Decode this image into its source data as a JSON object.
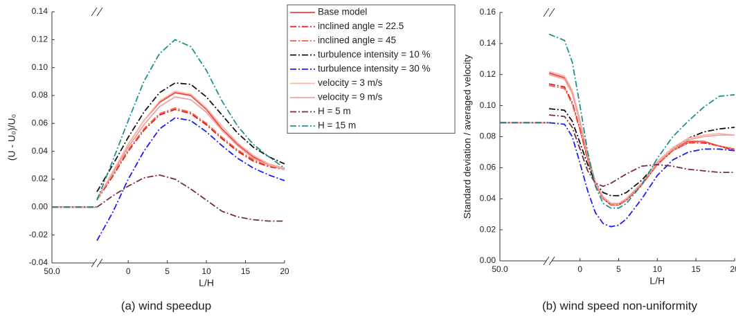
{
  "chart_data": [
    {
      "type": "line",
      "caption": "(a) wind speedup",
      "xlabel": "L/H",
      "ylabel": "(U - U₀)/U₀",
      "xlim": [
        -50,
        20
      ],
      "xbreak": -4,
      "xticks": [
        {
          "value": -50,
          "label": "50.0"
        },
        0,
        5,
        10,
        15,
        20
      ],
      "ylim": [
        -0.04,
        0.14
      ],
      "yticks": [
        {
          "value": -0.04,
          "label": "-0.04"
        },
        {
          "value": -0.02,
          "label": "-0.02"
        },
        {
          "value": 0,
          "label": "0.00"
        },
        {
          "value": 0.02,
          "label": "0.02"
        },
        {
          "value": 0.04,
          "label": "0.04"
        },
        {
          "value": 0.06,
          "label": "0.06"
        },
        {
          "value": 0.08,
          "label": "0.08"
        },
        {
          "value": 0.1,
          "label": "0.10"
        },
        {
          "value": 0.12,
          "label": "0.12"
        },
        {
          "value": 0.14,
          "label": "0.14"
        }
      ],
      "legend": "top-right",
      "x": [
        -50,
        -4.5,
        -4.4,
        -4,
        -2,
        0,
        2,
        4,
        6,
        8,
        10,
        12,
        14,
        16,
        18,
        20
      ],
      "series": [
        {
          "name": "Base model",
          "color": "#f04040",
          "dash": "solid",
          "values": [
            0,
            0,
            null,
            0.005,
            0.025,
            0.045,
            0.062,
            0.075,
            0.082,
            0.08,
            0.07,
            0.056,
            0.045,
            0.036,
            0.03,
            0.027
          ]
        },
        {
          "name": "inclined angle = 22.5",
          "color": "#e01818",
          "dash": "dashdot",
          "values": [
            0,
            0,
            null,
            0.005,
            0.022,
            0.04,
            0.055,
            0.066,
            0.07,
            0.067,
            0.059,
            0.049,
            0.04,
            0.033,
            0.029,
            0.027
          ]
        },
        {
          "name": "inclined angle = 45",
          "color": "#f06040",
          "dash": "dashdot",
          "values": [
            0,
            0,
            null,
            0.006,
            0.023,
            0.041,
            0.056,
            0.067,
            0.071,
            0.068,
            0.06,
            0.05,
            0.041,
            0.034,
            0.03,
            0.028
          ]
        },
        {
          "name": "turbulence intensity = 10 %",
          "color": "#111111",
          "dash": "dashdot",
          "values": [
            0,
            0,
            null,
            0.011,
            0.03,
            0.05,
            0.068,
            0.082,
            0.089,
            0.088,
            0.079,
            0.066,
            0.053,
            0.043,
            0.036,
            0.031
          ]
        },
        {
          "name": "turbulence intensity = 30 %",
          "color": "#1a1aff",
          "dash": "dashdot",
          "values": [
            0,
            0,
            null,
            -0.024,
            -0.004,
            0.02,
            0.04,
            0.056,
            0.064,
            0.062,
            0.054,
            0.044,
            0.035,
            0.028,
            0.023,
            0.019
          ]
        },
        {
          "name": "velocity = 3 m/s",
          "color": "#f8b8a8",
          "dash": "solid",
          "values": [
            0,
            0,
            null,
            0.005,
            0.025,
            0.045,
            0.062,
            0.076,
            0.083,
            0.081,
            0.071,
            0.058,
            0.046,
            0.037,
            0.031,
            0.028
          ]
        },
        {
          "name": "velocity = 9 m/s",
          "color": "#f0a0a0",
          "dash": "solid",
          "values": [
            0,
            0,
            null,
            0.006,
            0.024,
            0.043,
            0.059,
            0.072,
            0.079,
            0.077,
            0.068,
            0.055,
            0.044,
            0.035,
            0.03,
            0.027
          ]
        },
        {
          "name": "H = 5 m",
          "color": "#7a2a3a",
          "dash": "dashdot",
          "values": [
            0,
            0,
            null,
            0,
            0.008,
            0.015,
            0.021,
            0.023,
            0.02,
            0.013,
            0.005,
            -0.003,
            -0.007,
            -0.009,
            -0.01,
            -0.01
          ]
        },
        {
          "name": "H = 15 m",
          "color": "#1a9090",
          "dash": "dashdot",
          "values": [
            0,
            0,
            null,
            0.005,
            0.033,
            0.062,
            0.09,
            0.11,
            0.12,
            0.115,
            0.098,
            0.076,
            0.058,
            0.045,
            0.036,
            0.028
          ]
        }
      ]
    },
    {
      "type": "line",
      "caption": "(b) wind speed non-uniformity",
      "xlabel": "L/H",
      "ylabel": "Standard deviation / averaged velocity",
      "xlim": [
        -50,
        20
      ],
      "xbreak": -4,
      "xticks": [
        {
          "value": -50,
          "label": "50.0"
        },
        0,
        5,
        10,
        15,
        20
      ],
      "ylim": [
        0,
        0.16
      ],
      "yticks": [
        {
          "value": 0,
          "label": "0.00"
        },
        {
          "value": 0.02,
          "label": "0.02"
        },
        {
          "value": 0.04,
          "label": "0.04"
        },
        {
          "value": 0.06,
          "label": "0.06"
        },
        {
          "value": 0.08,
          "label": "0.08"
        },
        {
          "value": 0.1,
          "label": "0.10"
        },
        {
          "value": 0.12,
          "label": "0.12"
        },
        {
          "value": 0.14,
          "label": "0.14"
        },
        {
          "value": 0.16,
          "label": "0.16"
        }
      ],
      "x": [
        -50,
        -4.5,
        -4.4,
        -4,
        -2,
        -1,
        0,
        1,
        2,
        3,
        4,
        5,
        6,
        8,
        10,
        12,
        14,
        16,
        18,
        20
      ],
      "series": [
        {
          "color": "#f04040",
          "dash": "solid",
          "values": [
            0.089,
            0.089,
            null,
            0.121,
            0.118,
            0.108,
            0.09,
            0.068,
            0.05,
            0.041,
            0.037,
            0.037,
            0.04,
            0.05,
            0.063,
            0.072,
            0.077,
            0.077,
            0.074,
            0.072
          ]
        },
        {
          "color": "#e01818",
          "dash": "dashdot",
          "values": [
            0.089,
            0.089,
            null,
            0.114,
            0.112,
            0.102,
            0.085,
            0.066,
            0.049,
            0.04,
            0.036,
            0.036,
            0.039,
            0.049,
            0.062,
            0.071,
            0.076,
            0.076,
            0.074,
            0.071
          ]
        },
        {
          "color": "#f06040",
          "dash": "dashdot",
          "values": [
            0.089,
            0.089,
            null,
            0.113,
            0.111,
            0.101,
            0.084,
            0.065,
            0.049,
            0.04,
            0.036,
            0.036,
            0.039,
            0.049,
            0.062,
            0.071,
            0.076,
            0.077,
            0.074,
            0.072
          ]
        },
        {
          "color": "#111111",
          "dash": "dashdot",
          "values": [
            0.089,
            0.089,
            null,
            0.098,
            0.097,
            0.09,
            0.076,
            0.062,
            0.05,
            0.044,
            0.042,
            0.042,
            0.044,
            0.052,
            0.063,
            0.072,
            0.079,
            0.083,
            0.085,
            0.086
          ]
        },
        {
          "color": "#1a1aff",
          "dash": "dashdot",
          "values": [
            0.089,
            0.089,
            null,
            0.089,
            0.088,
            0.08,
            0.063,
            0.045,
            0.031,
            0.024,
            0.022,
            0.023,
            0.027,
            0.04,
            0.055,
            0.065,
            0.07,
            0.072,
            0.072,
            0.071
          ]
        },
        {
          "color": "#f8b8a8",
          "dash": "solid",
          "values": [
            0.089,
            0.089,
            null,
            0.122,
            0.119,
            0.11,
            0.091,
            0.069,
            0.051,
            0.041,
            0.037,
            0.037,
            0.04,
            0.05,
            0.064,
            0.073,
            0.079,
            0.081,
            0.082,
            0.081
          ]
        },
        {
          "color": "#f0a0a0",
          "dash": "solid",
          "values": [
            0.089,
            0.089,
            null,
            0.12,
            0.117,
            0.108,
            0.089,
            0.068,
            0.05,
            0.041,
            0.037,
            0.037,
            0.04,
            0.05,
            0.063,
            0.072,
            0.078,
            0.08,
            0.081,
            0.081
          ]
        },
        {
          "color": "#7a2a3a",
          "dash": "dashdot",
          "values": [
            0.089,
            0.089,
            null,
            0.094,
            0.093,
            0.086,
            0.072,
            0.058,
            0.05,
            0.048,
            0.05,
            0.053,
            0.056,
            0.061,
            0.062,
            0.061,
            0.059,
            0.058,
            0.057,
            0.057
          ]
        },
        {
          "color": "#1a9090",
          "dash": "dashdot",
          "values": [
            0.089,
            0.089,
            null,
            0.146,
            0.142,
            0.128,
            0.1,
            0.07,
            0.048,
            0.037,
            0.034,
            0.034,
            0.037,
            0.049,
            0.066,
            0.08,
            0.09,
            0.099,
            0.106,
            0.107
          ]
        }
      ]
    }
  ]
}
